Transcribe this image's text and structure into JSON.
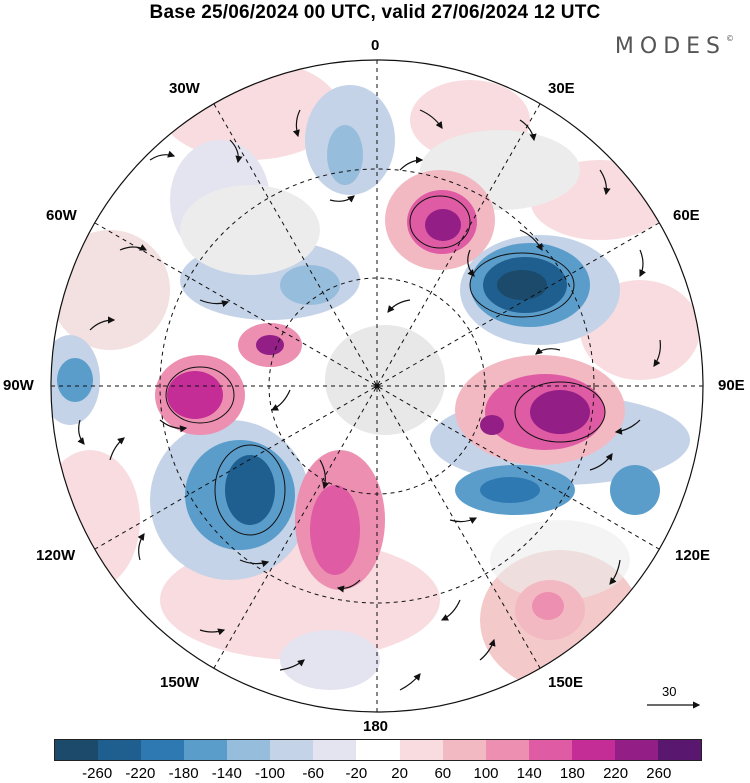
{
  "header": {
    "title": "Base 25/06/2024 00 UTC, valid 27/06/2024 12 UTC",
    "brand": "MODES",
    "brand_mark": "©"
  },
  "map": {
    "projection": "north polar stereographic",
    "longitude_labels": {
      "top": "0",
      "upper_left": "30W",
      "upper_right": "30E",
      "left_upper": "60W",
      "right_upper": "60E",
      "left": "90W",
      "right": "90E",
      "left_lower": "120W",
      "right_lower": "120E",
      "bottom_left": "150W",
      "bottom_right": "150E",
      "bottom": "180"
    },
    "reference_vector": "30"
  },
  "colorbar": {
    "colors": [
      "#1b4a6b",
      "#1f5f8f",
      "#2f79b3",
      "#5a9dcb",
      "#97bddc",
      "#c4d3e8",
      "#e4e3f0",
      "#ffffff",
      "#f8dcdf",
      "#f3b9c2",
      "#ec8fb1",
      "#df5ba4",
      "#c42d96",
      "#931e86",
      "#5a1770"
    ],
    "ticks": [
      "-260",
      "-220",
      "-180",
      "-140",
      "-100",
      "-60",
      "-20",
      "20",
      "60",
      "100",
      "140",
      "180",
      "220",
      "260"
    ]
  }
}
